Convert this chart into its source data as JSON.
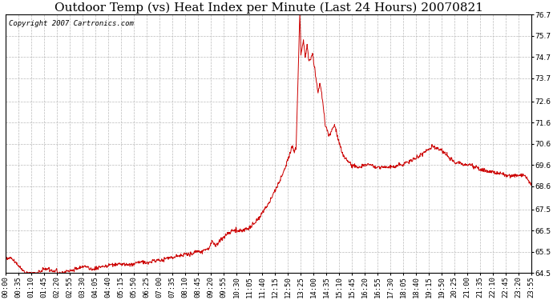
{
  "title": "Outdoor Temp (vs) Heat Index per Minute (Last 24 Hours) 20070821",
  "copyright_text": "Copyright 2007 Cartronics.com",
  "line_color": "#cc0000",
  "background_color": "#ffffff",
  "grid_color": "#bbbbbb",
  "ylim": [
    64.5,
    76.7
  ],
  "yticks": [
    64.5,
    65.5,
    66.5,
    67.5,
    68.6,
    69.6,
    70.6,
    71.6,
    72.6,
    73.7,
    74.7,
    75.7,
    76.7
  ],
  "xtick_labels": [
    "00:00",
    "00:35",
    "01:10",
    "01:45",
    "02:20",
    "02:55",
    "03:30",
    "04:05",
    "04:40",
    "05:15",
    "05:50",
    "06:25",
    "07:00",
    "07:35",
    "08:10",
    "08:45",
    "09:20",
    "09:55",
    "10:30",
    "11:05",
    "11:40",
    "12:15",
    "12:50",
    "13:25",
    "14:00",
    "14:35",
    "15:10",
    "15:45",
    "16:20",
    "16:55",
    "17:30",
    "18:05",
    "18:40",
    "19:15",
    "19:50",
    "20:25",
    "21:00",
    "21:35",
    "22:10",
    "22:45",
    "23:20",
    "23:55"
  ],
  "title_fontsize": 11,
  "copyright_fontsize": 6.5,
  "tick_fontsize": 6.5,
  "figsize": [
    6.9,
    3.75
  ],
  "dpi": 100
}
